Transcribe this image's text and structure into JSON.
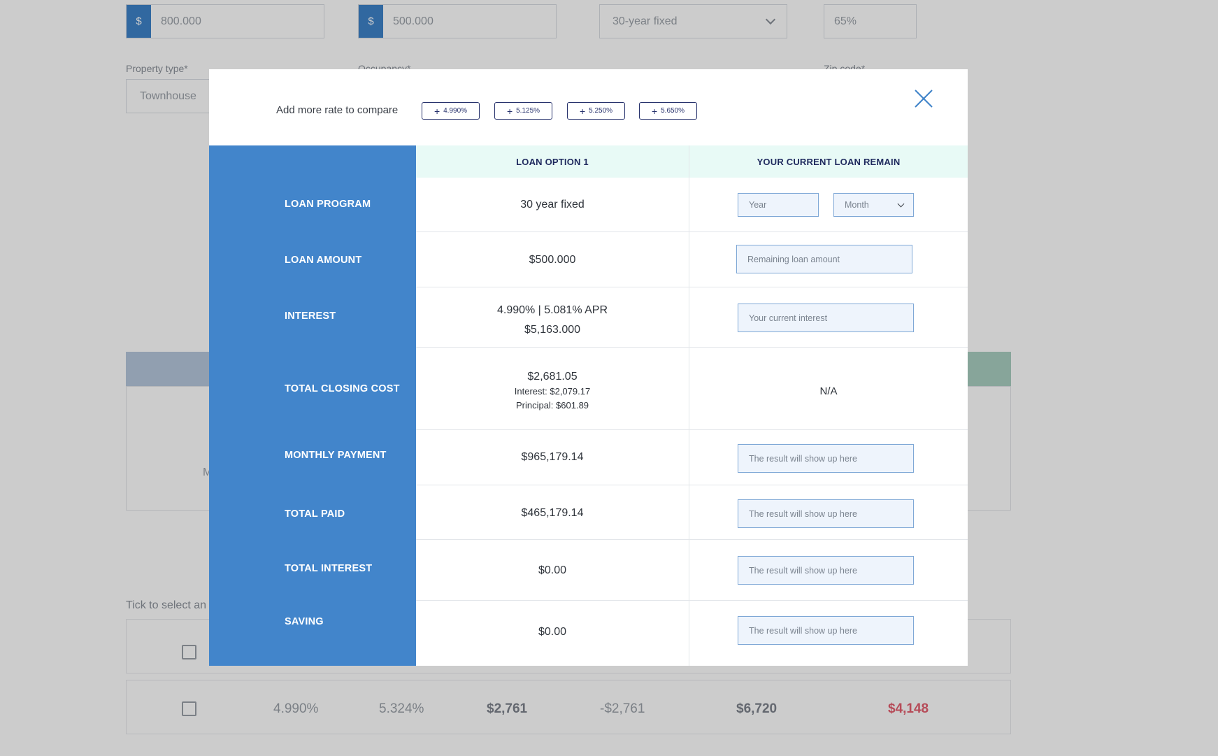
{
  "background": {
    "price_prefix": "$",
    "price_value": "800.000",
    "loan_prefix": "$",
    "loan_value": "500.000",
    "term_value": "30-year fixed",
    "ltv_value": "65%",
    "property_type_label": "Property type*",
    "property_type_value": "Townhouse",
    "occupancy_label": "Occupancy*",
    "zip_label": "Zip code*",
    "tick_text": "Tick to select an",
    "card_text": "M",
    "row": {
      "rate": "4.990%",
      "apr": "5.324%",
      "closing": "$2,761",
      "diff": "-$2,761",
      "payment": "$6,720",
      "saving": "$4,148"
    },
    "colors": {
      "band_left": "#b6c7dc",
      "band_right": "#a9cfc1",
      "accent": "#3e82c8"
    }
  },
  "modal": {
    "compare_label": "Add more rate to compare",
    "chips": [
      "4.990%",
      "5.125%",
      "5.250%",
      "5.650%"
    ],
    "close_icon": "close-icon",
    "headers": {
      "option": "LOAN OPTION 1",
      "current": "YOUR CURRENT LOAN REMAIN"
    },
    "rows": {
      "loan_program": {
        "label": "LOAN PROGRAM",
        "value": "30 year fixed",
        "year_placeholder": "Year",
        "month_value": "Month"
      },
      "loan_amount": {
        "label": "LOAN AMOUNT",
        "value": "$500.000",
        "placeholder": "Remaining loan amount"
      },
      "interest": {
        "label": "INTEREST",
        "value_line1": "4.990% | 5.081% APR",
        "value_line2": "$5,163.000",
        "placeholder": "Your current interest"
      },
      "total_closing_cost": {
        "label": "TOTAL CLOSING COST",
        "value": "$2,681.05",
        "interest_line": "Interest: $2,079.17",
        "principal_line": "Principal: $601.89",
        "current": "N/A"
      },
      "monthly_payment": {
        "label": "MONTHLY PAYMENT",
        "value": "$965,179.14",
        "placeholder": "The result will show up here"
      },
      "total_paid": {
        "label": "TOTAL PAID",
        "value": "$465,179.14",
        "placeholder": "The result will show up here"
      },
      "total_interest": {
        "label": "TOTAL INTEREST",
        "value": "$0.00",
        "placeholder": "The result will show up here"
      },
      "saving": {
        "label": "SAVING",
        "value": "$0.00",
        "placeholder": "The result will show up here"
      }
    },
    "colors": {
      "label_column": "#4285cb",
      "header_bg": "#e8faf6",
      "chip_border": "#25306b"
    }
  }
}
